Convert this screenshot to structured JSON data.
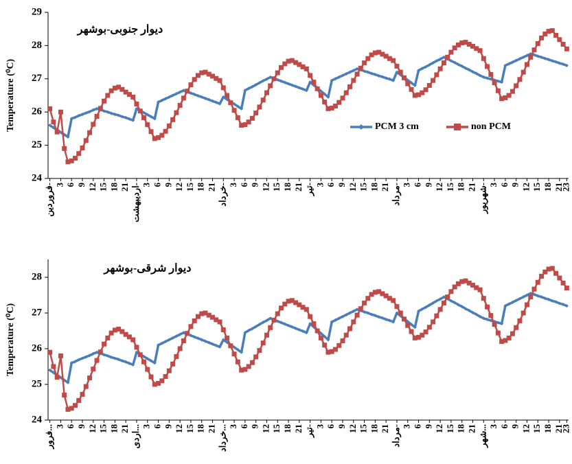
{
  "chart_data": [
    {
      "type": "line",
      "title": "دیوار جنوبی-بوشهر",
      "y_label": "Temperature (⁰C)",
      "legend": "right",
      "categories": [
        "فروردین-",
        null,
        null,
        "3",
        null,
        null,
        "6",
        null,
        null,
        "9",
        null,
        null,
        "12",
        null,
        null,
        "15",
        null,
        null,
        "18",
        null,
        null,
        "21",
        null,
        null,
        "اردیبهشت-",
        null,
        null,
        "3",
        null,
        null,
        "6",
        null,
        null,
        "9",
        null,
        null,
        "12",
        null,
        null,
        "15",
        null,
        null,
        "18",
        null,
        null,
        "21",
        null,
        null,
        "خرداد-",
        null,
        null,
        "3",
        null,
        null,
        "6",
        null,
        null,
        "9",
        null,
        null,
        "12",
        null,
        null,
        "15",
        null,
        null,
        "18",
        null,
        null,
        "21",
        null,
        null,
        "تیر-",
        null,
        null,
        "3",
        null,
        null,
        "6",
        null,
        null,
        "9",
        null,
        null,
        "12",
        null,
        null,
        "15",
        null,
        null,
        "18",
        null,
        null,
        "21",
        null,
        null,
        "مرداد-",
        null,
        null,
        "3",
        null,
        null,
        "6",
        null,
        null,
        "9",
        null,
        null,
        "12",
        null,
        null,
        "15",
        null,
        null,
        "18",
        null,
        null,
        "21",
        null,
        null,
        "شهریور-",
        null,
        null,
        "3",
        null,
        null,
        "6",
        null,
        null,
        "9",
        null,
        null,
        "12",
        null,
        null,
        "15",
        null,
        null,
        "18",
        null,
        null,
        "21",
        null,
        "23"
      ],
      "ylim": [
        24,
        29
      ],
      "yticks": [
        24,
        25,
        26,
        27,
        28,
        29
      ],
      "series": [
        {
          "name": "PCM 3 cm",
          "color": "#4a7ebb",
          "values": [
            25.6,
            25.53,
            25.46,
            25.39,
            25.32,
            25.25,
            25.8,
            25.84,
            25.89,
            25.93,
            25.97,
            26.01,
            26.06,
            26.1,
            26.07,
            26.03,
            26.0,
            25.96,
            25.93,
            25.9,
            25.86,
            25.83,
            25.79,
            25.75,
            26.1,
            26.04,
            25.98,
            25.92,
            25.86,
            25.8,
            26.3,
            26.35,
            26.4,
            26.45,
            26.5,
            26.55,
            26.6,
            26.65,
            26.61,
            26.57,
            26.53,
            26.49,
            26.45,
            26.41,
            26.37,
            26.33,
            26.29,
            26.25,
            26.45,
            26.38,
            26.31,
            26.24,
            26.17,
            26.1,
            26.65,
            26.71,
            26.76,
            26.82,
            26.88,
            26.94,
            26.99,
            27.05,
            27.01,
            26.97,
            26.93,
            26.89,
            26.85,
            26.81,
            26.77,
            26.73,
            26.69,
            26.65,
            26.9,
            26.81,
            26.72,
            26.63,
            26.54,
            26.45,
            26.95,
            27.0,
            27.05,
            27.1,
            27.15,
            27.2,
            27.25,
            27.3,
            27.27,
            27.23,
            27.2,
            27.16,
            27.13,
            27.09,
            27.06,
            27.02,
            26.99,
            26.95,
            27.2,
            27.12,
            27.04,
            26.96,
            26.88,
            26.8,
            27.25,
            27.31,
            27.36,
            27.42,
            27.48,
            27.54,
            27.59,
            27.65,
            27.6,
            27.54,
            27.49,
            27.43,
            27.38,
            27.32,
            27.27,
            27.21,
            27.16,
            27.1,
            27.05,
            27.02,
            26.99,
            26.96,
            26.93,
            26.9,
            27.4,
            27.45,
            27.5,
            27.55,
            27.6,
            27.65,
            27.7,
            27.75,
            27.72,
            27.68,
            27.65,
            27.61,
            27.58,
            27.54,
            27.51,
            27.47,
            27.44,
            27.4
          ]
        },
        {
          "name": "non PCM",
          "color": "#be4b48",
          "values": [
            26.1,
            25.7,
            25.4,
            26.0,
            24.9,
            24.5,
            24.53,
            24.61,
            24.75,
            24.92,
            25.14,
            25.38,
            25.63,
            25.87,
            26.11,
            26.33,
            26.5,
            26.64,
            26.72,
            26.75,
            26.68,
            26.6,
            26.53,
            26.45,
            26.24,
            26.03,
            25.83,
            25.62,
            25.41,
            25.2,
            25.23,
            25.3,
            25.42,
            25.58,
            25.77,
            25.98,
            26.2,
            26.42,
            26.63,
            26.82,
            26.98,
            27.1,
            27.18,
            27.2,
            27.14,
            27.08,
            27.01,
            26.95,
            26.73,
            26.5,
            26.28,
            26.05,
            25.83,
            25.6,
            25.62,
            25.7,
            25.81,
            25.97,
            26.15,
            26.36,
            26.58,
            26.79,
            27.0,
            27.18,
            27.34,
            27.45,
            27.53,
            27.55,
            27.49,
            27.43,
            27.36,
            27.3,
            27.1,
            26.9,
            26.7,
            26.5,
            26.3,
            26.1,
            26.12,
            26.18,
            26.29,
            26.42,
            26.58,
            26.76,
            26.95,
            27.14,
            27.32,
            27.48,
            27.61,
            27.72,
            27.78,
            27.8,
            27.74,
            27.68,
            27.61,
            27.55,
            27.38,
            27.2,
            27.03,
            26.85,
            26.68,
            26.5,
            26.52,
            26.58,
            26.67,
            26.8,
            26.95,
            27.12,
            27.3,
            27.48,
            27.65,
            27.8,
            27.93,
            28.02,
            28.08,
            28.1,
            28.04,
            27.98,
            27.91,
            27.85,
            27.61,
            27.37,
            27.13,
            26.88,
            26.64,
            26.4,
            26.43,
            26.5,
            26.62,
            26.79,
            26.98,
            27.2,
            27.43,
            27.65,
            27.87,
            28.06,
            28.23,
            28.35,
            28.43,
            28.45,
            28.31,
            28.18,
            28.04,
            27.9
          ]
        }
      ]
    },
    {
      "type": "line",
      "title": "دیوار شرقی-بوشهر",
      "y_label": "Temperature (⁰C)",
      "categories": [
        "فرور...",
        null,
        null,
        "3",
        null,
        null,
        "6",
        null,
        null,
        "9",
        null,
        null,
        "12",
        null,
        null,
        "15",
        null,
        null,
        "18",
        null,
        null,
        "21",
        null,
        null,
        "اردی...",
        null,
        null,
        "3",
        null,
        null,
        "6",
        null,
        null,
        "9",
        null,
        null,
        "12",
        null,
        null,
        "15",
        null,
        null,
        "18",
        null,
        null,
        "21",
        null,
        null,
        "خرداد...",
        null,
        null,
        "3",
        null,
        null,
        "6",
        null,
        null,
        "9",
        null,
        null,
        "12",
        null,
        null,
        "15",
        null,
        null,
        "18",
        null,
        null,
        "21",
        null,
        null,
        "تیر-",
        null,
        null,
        "3",
        null,
        null,
        "6",
        null,
        null,
        "9",
        null,
        null,
        "12",
        null,
        null,
        "15",
        null,
        null,
        "18",
        null,
        null,
        "21",
        null,
        null,
        "مرداد-",
        null,
        null,
        "3",
        null,
        null,
        "6",
        null,
        null,
        "9",
        null,
        null,
        "12",
        null,
        null,
        "15",
        null,
        null,
        "18",
        null,
        null,
        "21",
        null,
        null,
        "شهر...",
        null,
        null,
        "3",
        null,
        null,
        "6",
        null,
        null,
        "9",
        null,
        null,
        "12",
        null,
        null,
        "15",
        null,
        null,
        "18",
        null,
        null,
        "21",
        null,
        "23"
      ],
      "ylim": [
        24,
        28.5
      ],
      "yticks": [
        24,
        25,
        26,
        27,
        28
      ],
      "series": [
        {
          "name": "PCM 3 cm",
          "color": "#4a7ebb",
          "values": [
            25.4,
            25.33,
            25.26,
            25.19,
            25.12,
            25.05,
            25.6,
            25.64,
            25.69,
            25.73,
            25.77,
            25.81,
            25.86,
            25.9,
            25.87,
            25.83,
            25.8,
            25.76,
            25.73,
            25.7,
            25.66,
            25.63,
            25.59,
            25.55,
            25.9,
            25.84,
            25.78,
            25.72,
            25.66,
            25.6,
            26.1,
            26.15,
            26.2,
            26.25,
            26.3,
            26.35,
            26.4,
            26.45,
            26.41,
            26.37,
            26.33,
            26.29,
            26.25,
            26.21,
            26.17,
            26.13,
            26.09,
            26.05,
            26.25,
            26.18,
            26.11,
            26.04,
            25.97,
            25.9,
            26.45,
            26.51,
            26.56,
            26.62,
            26.68,
            26.74,
            26.79,
            26.85,
            26.81,
            26.77,
            26.73,
            26.69,
            26.65,
            26.61,
            26.57,
            26.53,
            26.49,
            26.45,
            26.7,
            26.61,
            26.52,
            26.43,
            26.34,
            26.25,
            26.75,
            26.8,
            26.85,
            26.9,
            26.95,
            27.0,
            27.05,
            27.1,
            27.07,
            27.03,
            27.0,
            26.96,
            26.93,
            26.89,
            26.86,
            26.82,
            26.79,
            26.75,
            27.0,
            26.92,
            26.84,
            26.76,
            26.68,
            26.6,
            27.05,
            27.11,
            27.16,
            27.22,
            27.28,
            27.34,
            27.39,
            27.45,
            27.4,
            27.34,
            27.29,
            27.23,
            27.18,
            27.12,
            27.07,
            27.01,
            26.96,
            26.9,
            26.85,
            26.82,
            26.79,
            26.76,
            26.73,
            26.7,
            27.2,
            27.25,
            27.3,
            27.35,
            27.4,
            27.45,
            27.5,
            27.55,
            27.52,
            27.48,
            27.45,
            27.41,
            27.38,
            27.34,
            27.31,
            27.27,
            27.24,
            27.2
          ]
        },
        {
          "name": "non PCM",
          "color": "#be4b48",
          "values": [
            25.9,
            25.5,
            25.2,
            25.8,
            24.7,
            24.3,
            24.33,
            24.41,
            24.55,
            24.72,
            24.94,
            25.18,
            25.43,
            25.67,
            25.91,
            26.13,
            26.3,
            26.44,
            26.52,
            26.55,
            26.48,
            26.4,
            26.33,
            26.25,
            26.04,
            25.83,
            25.63,
            25.42,
            25.21,
            25.0,
            25.03,
            25.1,
            25.22,
            25.38,
            25.57,
            25.78,
            26.0,
            26.22,
            26.43,
            26.62,
            26.78,
            26.9,
            26.98,
            27.0,
            26.94,
            26.88,
            26.81,
            26.75,
            26.53,
            26.3,
            26.08,
            25.85,
            25.63,
            25.4,
            25.42,
            25.5,
            25.61,
            25.77,
            25.95,
            26.16,
            26.38,
            26.59,
            26.8,
            26.98,
            27.14,
            27.25,
            27.33,
            27.35,
            27.29,
            27.23,
            27.16,
            27.1,
            26.9,
            26.7,
            26.5,
            26.3,
            26.1,
            25.9,
            25.92,
            25.98,
            26.09,
            26.22,
            26.38,
            26.56,
            26.75,
            26.94,
            27.12,
            27.28,
            27.41,
            27.52,
            27.58,
            27.6,
            27.54,
            27.48,
            27.41,
            27.35,
            27.18,
            27.0,
            26.83,
            26.65,
            26.48,
            26.3,
            26.32,
            26.38,
            26.47,
            26.6,
            26.75,
            26.92,
            27.1,
            27.28,
            27.45,
            27.6,
            27.73,
            27.82,
            27.88,
            27.9,
            27.84,
            27.78,
            27.71,
            27.65,
            27.41,
            27.17,
            26.93,
            26.68,
            26.44,
            26.2,
            26.23,
            26.3,
            26.42,
            26.59,
            26.78,
            27.0,
            27.23,
            27.45,
            27.67,
            27.86,
            28.03,
            28.15,
            28.23,
            28.25,
            28.11,
            27.98,
            27.84,
            27.7
          ]
        }
      ]
    }
  ]
}
